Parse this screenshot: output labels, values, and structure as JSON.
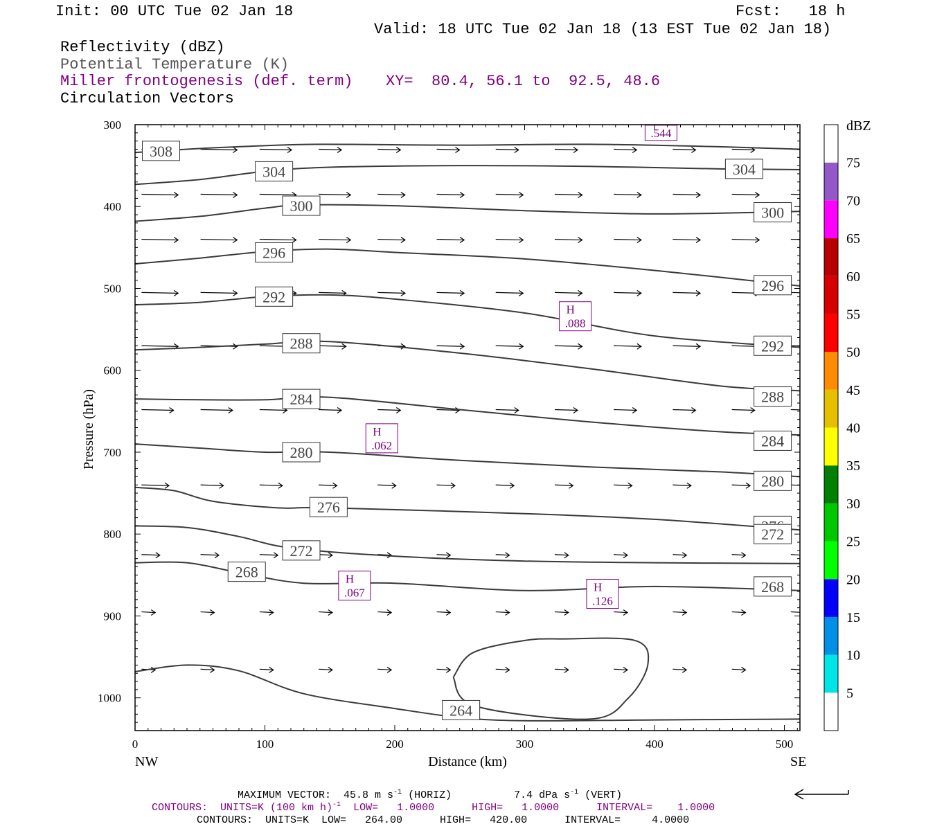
{
  "header": {
    "init": "Init: 00 UTC Tue 02 Jan 18",
    "fcst": "Fcst:   18 h",
    "valid": "Valid: 18 UTC Tue 02 Jan 18 (13 EST Tue 02 Jan 18)",
    "field1": "Reflectivity (dBZ)",
    "field2": "Potential Temperature (K)",
    "field3": "Miller frontogenesis (def. term)",
    "xy": "XY=  80.4, 56.1 to  92.5, 48.6",
    "field4": "Circulation Vectors"
  },
  "footer": {
    "maxvec_prefix": "MAXIMUM VECTOR:  45.8 m s",
    "maxvec_mid": " (HORIZ)          7.4 dPa s",
    "maxvec_suffix": " (VERT)",
    "exp": "-1",
    "c1_prefix": "CONTOURS:  UNITS=K (100 km h)",
    "c1_suffix": "  LOW=   1.0000      HIGH=   1.0000      INTERVAL=    1.0000",
    "c2": "CONTOURS:  UNITS=K  LOW=   264.00      HIGH=   420.00      INTERVAL=     4.0000"
  },
  "chart_data": {
    "type": "cross-section",
    "xlabel": "Distance (km)",
    "ylabel": "Pressure (hPa)",
    "xlim": [
      0,
      512
    ],
    "ylim": [
      1040,
      300
    ],
    "x_ticks": [
      0,
      100,
      200,
      300,
      400,
      500
    ],
    "y_ticks": [
      300,
      400,
      500,
      600,
      700,
      800,
      900,
      1000
    ],
    "x_end_labels": {
      "left": "NW",
      "right": "SE"
    },
    "theta_contours": [
      {
        "label": "308",
        "x": [
          0,
          40,
          80,
          140,
          250,
          350,
          450,
          512
        ],
        "p": [
          334,
          330,
          327,
          324,
          325,
          324,
          327,
          330
        ],
        "labels_at": [
          [
            20,
            332
          ]
        ]
      },
      {
        "label": "304",
        "x": [
          0,
          50,
          100,
          150,
          250,
          350,
          450,
          512
        ],
        "p": [
          373,
          367,
          357,
          352,
          350,
          351,
          354,
          355
        ],
        "labels_at": [
          [
            107,
            357
          ],
          [
            469,
            354
          ]
        ]
      },
      {
        "label": "300",
        "x": [
          0,
          50,
          100,
          130,
          200,
          300,
          400,
          512
        ],
        "p": [
          418,
          412,
          402,
          398,
          399,
          405,
          409,
          406
        ],
        "labels_at": [
          [
            128,
            399
          ],
          [
            491,
            407
          ]
        ]
      },
      {
        "label": "296",
        "x": [
          0,
          50,
          100,
          150,
          200,
          300,
          400,
          512
        ],
        "p": [
          470,
          463,
          455,
          452,
          456,
          464,
          478,
          497
        ],
        "labels_at": [
          [
            107,
            456
          ],
          [
            491,
            496
          ]
        ]
      },
      {
        "label": "292",
        "x": [
          0,
          50,
          100,
          150,
          200,
          300,
          400,
          512
        ],
        "p": [
          520,
          517,
          510,
          508,
          513,
          530,
          558,
          572
        ],
        "labels_at": [
          [
            107,
            510
          ],
          [
            491,
            570
          ]
        ]
      },
      {
        "label": "288",
        "x": [
          0,
          50,
          100,
          150,
          250,
          350,
          450,
          512
        ],
        "p": [
          575,
          572,
          568,
          565,
          579,
          598,
          619,
          625
        ],
        "labels_at": [
          [
            128,
            567
          ],
          [
            491,
            632
          ]
        ]
      },
      {
        "label": "284",
        "x": [
          0,
          50,
          100,
          150,
          250,
          350,
          450,
          512
        ],
        "p": [
          635,
          636,
          636,
          633,
          648,
          663,
          675,
          679
        ],
        "labels_at": [
          [
            128,
            635
          ],
          [
            491,
            686
          ]
        ]
      },
      {
        "label": "280",
        "x": [
          0,
          50,
          100,
          150,
          250,
          350,
          450,
          512
        ],
        "p": [
          690,
          695,
          700,
          700,
          710,
          718,
          724,
          730
        ],
        "labels_at": [
          [
            128,
            700
          ],
          [
            491,
            735
          ]
        ]
      },
      {
        "label": "276",
        "x": [
          0,
          30,
          60,
          110,
          150,
          300,
          400,
          512
        ],
        "p": [
          743,
          747,
          760,
          768,
          768,
          775,
          782,
          795
        ],
        "labels_at": [
          [
            149,
            767
          ],
          [
            491,
            790
          ]
        ]
      },
      {
        "label": "272",
        "x": [
          0,
          40,
          80,
          120,
          200,
          300,
          400,
          512
        ],
        "p": [
          790,
          792,
          803,
          817,
          827,
          833,
          835,
          836
        ],
        "labels_at": [
          [
            128,
            820
          ],
          [
            491,
            800
          ]
        ]
      },
      {
        "label": "268",
        "x": [
          0,
          40,
          80,
          130,
          200,
          300,
          400,
          512
        ],
        "p": [
          835,
          835,
          847,
          860,
          860,
          869,
          864,
          869
        ],
        "labels_at": [
          [
            86,
            846
          ],
          [
            491,
            864
          ]
        ]
      },
      {
        "label": "264",
        "x": [
          0,
          40,
          80,
          130,
          200,
          250,
          300,
          400,
          512
        ],
        "p": [
          968,
          960,
          967,
          995,
          1013,
          1024,
          1028,
          1027,
          1026
        ],
        "labels_at": [
          [
            251,
            1015
          ]
        ]
      }
    ],
    "closed_contour_264": {
      "x": [
        245,
        260,
        300,
        330,
        385,
        395,
        380,
        350,
        262,
        245
      ],
      "p": [
        975,
        945,
        930,
        928,
        930,
        958,
        1000,
        1026,
        1010,
        975
      ]
    },
    "frontogenesis_maxima": [
      {
        "label": "H",
        "value": ".544",
        "x": 405,
        "p": 310
      },
      {
        "label": "H",
        "value": ".088",
        "x": 339,
        "p": 534
      },
      {
        "label": "H",
        "value": ".062",
        "x": 190,
        "p": 683
      },
      {
        "label": "H",
        "value": ".067",
        "x": 169,
        "p": 863
      },
      {
        "label": "H",
        "value": ".126",
        "x": 360,
        "p": 873
      }
    ],
    "colorbar": {
      "title": "dBZ",
      "levels": [
        5,
        10,
        15,
        20,
        25,
        30,
        35,
        40,
        45,
        50,
        55,
        60,
        65,
        70,
        75
      ],
      "colors": [
        "#00e5e5",
        "#0090e5",
        "#0000ff",
        "#00ff00",
        "#00c800",
        "#008000",
        "#ffff00",
        "#e5bf00",
        "#ff8c00",
        "#ff0000",
        "#d70000",
        "#b70000",
        "#ff00ff",
        "#9458c8",
        "#ffffff"
      ]
    },
    "vector_rows": [
      {
        "p": 330,
        "u": [
          8,
          8,
          7,
          5,
          5,
          5,
          5,
          5,
          5,
          5,
          5,
          5
        ]
      },
      {
        "p": 385,
        "u": [
          8,
          8,
          8,
          7,
          6,
          6,
          6,
          6,
          6,
          6,
          6,
          6
        ]
      },
      {
        "p": 440,
        "u": [
          8,
          8,
          8,
          7,
          6,
          6,
          6,
          6,
          6,
          6,
          6,
          6
        ]
      },
      {
        "p": 505,
        "u": [
          8,
          8,
          8,
          6,
          6,
          6,
          6,
          6,
          6,
          6,
          6,
          6
        ]
      },
      {
        "p": 570,
        "u": [
          8,
          8,
          7,
          6,
          6,
          6,
          6,
          6,
          6,
          6,
          6,
          6
        ]
      },
      {
        "p": 648,
        "u": [
          7,
          7,
          6,
          5,
          5,
          5,
          5,
          5,
          5,
          5,
          5,
          5
        ]
      },
      {
        "p": 740,
        "u": [
          6,
          5,
          5,
          4,
          4,
          4,
          4,
          4,
          4,
          4,
          4,
          4
        ]
      },
      {
        "p": 825,
        "u": [
          4,
          4,
          4,
          3,
          3,
          3,
          3,
          3,
          3,
          3,
          3,
          3
        ]
      },
      {
        "p": 895,
        "u": [
          3,
          3,
          3,
          3,
          3,
          3,
          3,
          3,
          3,
          3,
          3,
          3
        ]
      },
      {
        "p": 965,
        "u": [
          3,
          3,
          3,
          3,
          3,
          3,
          3,
          3,
          3,
          3,
          3,
          3
        ]
      }
    ],
    "reference_vector": "45.8 m s-1"
  }
}
